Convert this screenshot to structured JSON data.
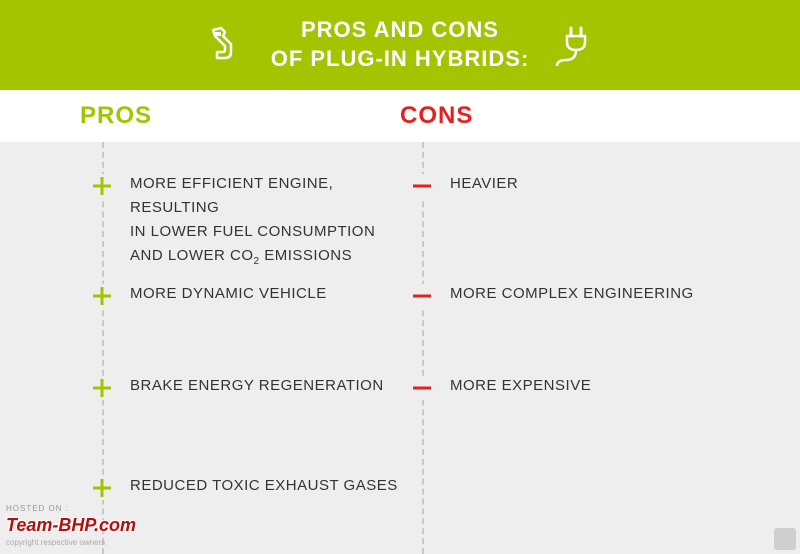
{
  "colors": {
    "header_bg": "#a4c400",
    "header_text": "#ffffff",
    "pros_accent": "#a4c400",
    "cons_accent": "#e62020",
    "body_bg": "#eeeeee",
    "text": "#333333",
    "dash": "#c8c8c8"
  },
  "header": {
    "title_line1": "PROS AND CONS",
    "title_line2": "OF PLUG-IN HYBRIDS:"
  },
  "titles": {
    "pros": "PROS",
    "cons": "CONS"
  },
  "pros": [
    "MORE EFFICIENT ENGINE, RESULTING IN LOWER FUEL CONSUMPTION AND LOWER CO₂ EMISSIONS",
    "MORE DYNAMIC VEHICLE",
    "BRAKE ENERGY REGENERATION",
    "REDUCED TOXIC EXHAUST GASES"
  ],
  "cons": [
    "HEAVIER",
    "MORE COMPLEX ENGINEERING",
    "MORE EXPENSIVE"
  ],
  "watermark": {
    "host": "HOSTED ON :",
    "brand": "Team-BHP.com",
    "tag": "copyright respective owners"
  }
}
